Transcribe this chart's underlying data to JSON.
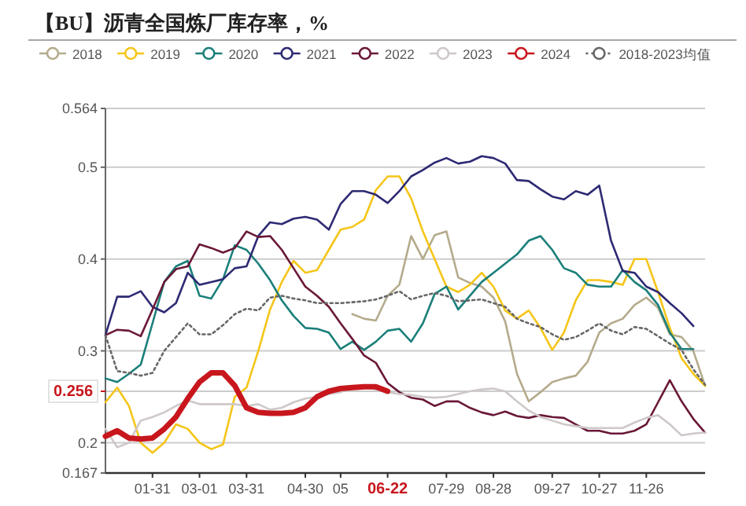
{
  "chart_data": {
    "type": "line",
    "title": "【BU】沥青全国炼厂库存率，%",
    "categories": [
      null,
      null,
      null,
      null,
      "01-31",
      null,
      null,
      null,
      "03-01",
      null,
      null,
      null,
      "03-31",
      null,
      null,
      null,
      null,
      "04-30",
      null,
      null,
      "05",
      null,
      null,
      null,
      "06-22",
      null,
      null,
      null,
      null,
      "07-29",
      null,
      null,
      null,
      "08-28",
      null,
      null,
      null,
      null,
      "09-27",
      null,
      null,
      null,
      "10-27",
      null,
      null,
      null,
      "11-26",
      null,
      null,
      null,
      null,
      null
    ],
    "ylim": [
      0.167,
      0.564
    ],
    "yticks": [
      0.167,
      0.2,
      {
        "value": 0.256,
        "label": "0.256"
      },
      0.3,
      0.4,
      0.5,
      0.564
    ],
    "grid": "y",
    "legend": "top",
    "marker": "none",
    "series": [
      {
        "name": "2018",
        "color": "#b4ab8c",
        "values": [
          null,
          null,
          null,
          null,
          null,
          null,
          null,
          null,
          null,
          null,
          null,
          null,
          null,
          null,
          null,
          null,
          null,
          null,
          null,
          null,
          null,
          0.34,
          0.335,
          0.333,
          0.36,
          0.372,
          0.425,
          0.4,
          0.426,
          0.43,
          0.38,
          0.374,
          0.37,
          0.358,
          0.332,
          0.275,
          0.245,
          0.255,
          0.266,
          0.27,
          0.273,
          0.288,
          0.32,
          0.33,
          0.335,
          0.35,
          0.358,
          0.347,
          0.318,
          0.315,
          0.3,
          0.262
        ]
      },
      {
        "name": "2019",
        "color": "#f5c518",
        "values": [
          0.244,
          0.26,
          0.24,
          0.2,
          0.189,
          0.2,
          0.22,
          0.215,
          0.2,
          0.193,
          0.198,
          0.25,
          0.26,
          0.3,
          0.345,
          0.375,
          0.398,
          0.385,
          0.388,
          0.41,
          0.432,
          0.435,
          0.443,
          0.475,
          0.49,
          0.49,
          0.466,
          0.43,
          0.4,
          0.37,
          0.364,
          0.372,
          0.385,
          0.37,
          0.344,
          0.335,
          0.344,
          0.325,
          0.301,
          0.32,
          0.355,
          0.377,
          0.377,
          0.375,
          0.372,
          0.4,
          0.4,
          0.364,
          0.325,
          0.292,
          0.275,
          0.262
        ]
      },
      {
        "name": "2020",
        "color": "#1b7f7a",
        "values": [
          0.27,
          0.266,
          0.275,
          0.285,
          0.33,
          0.375,
          0.392,
          0.398,
          0.36,
          0.357,
          0.378,
          0.415,
          0.41,
          0.395,
          0.377,
          0.355,
          0.338,
          0.325,
          0.324,
          0.32,
          0.302,
          0.31,
          0.301,
          0.31,
          0.322,
          0.324,
          0.31,
          0.33,
          0.362,
          0.37,
          0.345,
          0.36,
          0.375,
          0.385,
          0.395,
          0.405,
          0.42,
          0.425,
          0.41,
          0.39,
          0.385,
          0.372,
          0.37,
          0.37,
          0.388,
          0.375,
          0.366,
          0.35,
          0.32,
          0.302,
          0.302,
          null
        ]
      },
      {
        "name": "2021",
        "color": "#2d2a73",
        "values": [
          0.317,
          0.359,
          0.359,
          0.365,
          0.348,
          0.342,
          0.352,
          0.385,
          0.372,
          0.375,
          0.378,
          0.39,
          0.392,
          0.425,
          0.44,
          0.438,
          0.444,
          0.446,
          0.443,
          0.432,
          0.46,
          0.474,
          0.474,
          0.47,
          0.461,
          0.474,
          0.49,
          0.497,
          0.505,
          0.51,
          0.504,
          0.506,
          0.512,
          0.51,
          0.504,
          0.486,
          0.485,
          0.476,
          0.468,
          0.465,
          0.474,
          0.47,
          0.48,
          0.42,
          0.387,
          0.385,
          0.37,
          0.364,
          0.352,
          0.341,
          0.327,
          null
        ]
      },
      {
        "name": "2022",
        "color": "#6a1838",
        "values": [
          0.317,
          0.323,
          0.322,
          0.316,
          0.345,
          0.375,
          0.389,
          0.392,
          0.416,
          0.412,
          0.407,
          0.412,
          0.43,
          0.424,
          0.425,
          0.41,
          0.39,
          0.37,
          0.36,
          0.348,
          0.33,
          0.313,
          0.295,
          0.287,
          0.265,
          0.255,
          0.249,
          0.247,
          0.24,
          0.245,
          0.245,
          0.238,
          0.233,
          0.23,
          0.234,
          0.229,
          0.227,
          0.23,
          0.228,
          0.227,
          0.22,
          0.213,
          0.213,
          0.21,
          0.21,
          0.213,
          0.22,
          0.244,
          0.268,
          0.245,
          0.226,
          0.211
        ]
      },
      {
        "name": "2023",
        "color": "#cfc8c8",
        "values": [
          0.215,
          0.195,
          0.2,
          0.224,
          0.228,
          0.233,
          0.24,
          0.246,
          0.242,
          0.242,
          0.242,
          0.242,
          0.24,
          0.242,
          0.236,
          0.238,
          0.244,
          0.248,
          0.25,
          0.253,
          0.255,
          0.26,
          0.262,
          0.258,
          0.255,
          0.253,
          0.252,
          0.25,
          0.249,
          0.25,
          0.253,
          0.256,
          0.258,
          0.259,
          0.256,
          0.245,
          0.235,
          0.228,
          0.224,
          0.22,
          0.218,
          0.216,
          0.216,
          0.216,
          0.216,
          0.222,
          0.227,
          0.23,
          0.22,
          0.208,
          0.21,
          0.211
        ]
      },
      {
        "name": "2024",
        "color": "#c8161d",
        "values": [
          0.207,
          0.213,
          0.205,
          0.204,
          0.205,
          0.215,
          0.228,
          0.248,
          0.266,
          0.276,
          0.276,
          0.262,
          0.238,
          0.233,
          0.232,
          0.232,
          0.233,
          0.238,
          0.25,
          0.256,
          0.259,
          0.26,
          0.261,
          0.261,
          0.256,
          null,
          null,
          null,
          null,
          null,
          null,
          null,
          null,
          null,
          null,
          null,
          null,
          null,
          null,
          null,
          null,
          null,
          null,
          null,
          null,
          null,
          null,
          null,
          null,
          null,
          null,
          null
        ]
      },
      {
        "name": "2018-2023均值",
        "color": "#666666",
        "line_style": "dotted",
        "values": [
          0.317,
          0.278,
          0.276,
          0.273,
          0.276,
          0.3,
          0.315,
          0.33,
          0.318,
          0.318,
          0.328,
          0.34,
          0.346,
          0.344,
          0.358,
          0.36,
          0.357,
          0.355,
          0.352,
          0.352,
          0.352,
          0.353,
          0.354,
          0.356,
          0.36,
          0.365,
          0.356,
          0.36,
          0.363,
          0.36,
          0.354,
          0.355,
          0.356,
          0.352,
          0.348,
          0.335,
          0.33,
          0.326,
          0.318,
          0.312,
          0.315,
          0.322,
          0.33,
          0.322,
          0.318,
          0.326,
          0.324,
          0.316,
          0.308,
          0.301,
          0.28,
          0.263
        ]
      }
    ]
  }
}
